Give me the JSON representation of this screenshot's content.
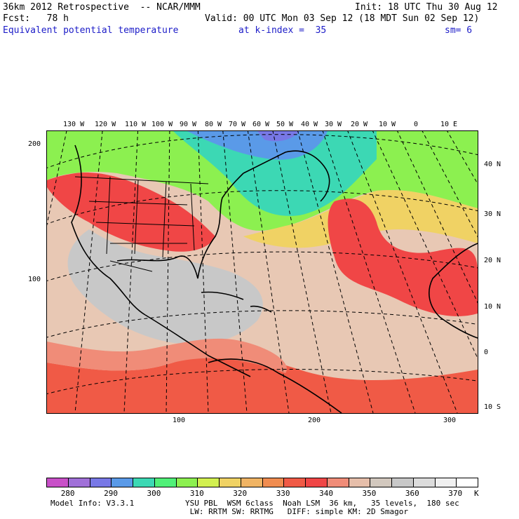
{
  "header": {
    "title_left": "36km 2012 Retrospective  -- NCAR/MMM",
    "init": "Init: 18 UTC Thu 30 Aug 12",
    "fcst": "Fcst:   78 h",
    "valid": "Valid: 00 UTC Mon 03 Sep 12 (18 MDT Sun 02 Sep 12)",
    "field": "Equivalent potential temperature",
    "level": "at k-index =  35",
    "smooth": "sm= 6"
  },
  "top_lon_labels": [
    "130 W",
    "120 W",
    "110 W",
    "100 W",
    "90 W",
    "80 W",
    "70 W",
    "60 W",
    "50 W",
    "40 W",
    "30 W",
    "20 W",
    "10 W",
    "0",
    "10 E"
  ],
  "right_lat_labels": [
    "40 N",
    "30 N",
    "20 N",
    "10 N",
    "0",
    "10 S"
  ],
  "left_axis": [
    "200",
    "100"
  ],
  "bottom_axis": [
    "100",
    "200",
    "300"
  ],
  "colorbar": {
    "labels": [
      "280",
      "290",
      "300",
      "310",
      "320",
      "330",
      "340",
      "350",
      "360",
      "370"
    ],
    "unit": "K",
    "colors": [
      "#c850c8",
      "#a070d8",
      "#7878e6",
      "#5a9ae8",
      "#3cd8b4",
      "#50f078",
      "#8cf050",
      "#d2f050",
      "#f0d264",
      "#f0b464",
      "#f08c50",
      "#f05a46",
      "#f04646",
      "#f08c78",
      "#e6beaa",
      "#d2c8be",
      "#c8c8c8",
      "#dcdcdc",
      "#f0f0f0",
      "#ffffff"
    ]
  },
  "footer": {
    "line1": "Model Info: V3.3.1           YSU PBL  WSM 6class  Noah LSM  36 km,   35 levels,  180 sec",
    "line2": "                              LW: RRTM SW: RRTMG   DIFF: simple KM: 2D Smagor"
  }
}
